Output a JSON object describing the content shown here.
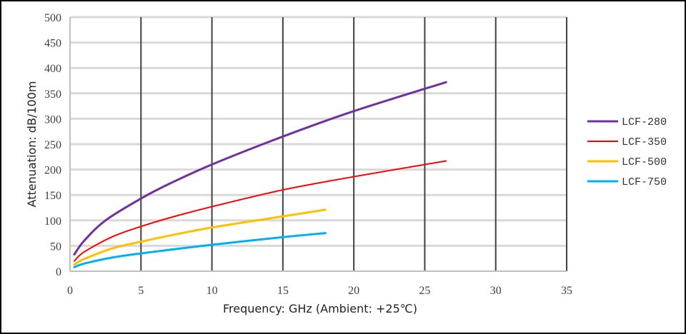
{
  "chart_data": {
    "type": "line",
    "title": "",
    "xlabel": "Frequency: GHz (Ambient: +25℃)",
    "ylabel": "Attenuation:  dB/100m",
    "xlim": [
      0,
      35
    ],
    "ylim": [
      0,
      500
    ],
    "x_ticks": [
      0,
      5,
      10,
      15,
      20,
      25,
      30,
      35
    ],
    "y_ticks": [
      0,
      50,
      100,
      150,
      200,
      250,
      300,
      350,
      400,
      450,
      500
    ],
    "grid": {
      "horizontal": true,
      "vertical": true
    },
    "legend_position": "right",
    "series": [
      {
        "name": "LCF-280",
        "color": "#7030a0",
        "x": [
          0.3,
          1,
          2.5,
          5,
          7,
          10,
          15,
          20,
          26.5
        ],
        "y": [
          33,
          60,
          100,
          143,
          172,
          210,
          265,
          315,
          372
        ]
      },
      {
        "name": "LCF-350",
        "color": "#ff0000",
        "x": [
          0.3,
          1,
          3,
          5,
          7,
          10,
          15,
          20,
          26.5
        ],
        "y": [
          20,
          38,
          68,
          88,
          105,
          127,
          160,
          186,
          217
        ]
      },
      {
        "name": "LCF-500",
        "color": "#ffc000",
        "x": [
          0.3,
          1,
          3,
          5,
          7,
          10,
          15,
          18
        ],
        "y": [
          13,
          24,
          45,
          58,
          70,
          86,
          108,
          121
        ]
      },
      {
        "name": "LCF-750",
        "color": "#00b0f0",
        "x": [
          0.3,
          1,
          3,
          5,
          7,
          10,
          15,
          18
        ],
        "y": [
          8,
          15,
          27,
          35,
          42,
          52,
          67,
          75
        ]
      }
    ]
  }
}
